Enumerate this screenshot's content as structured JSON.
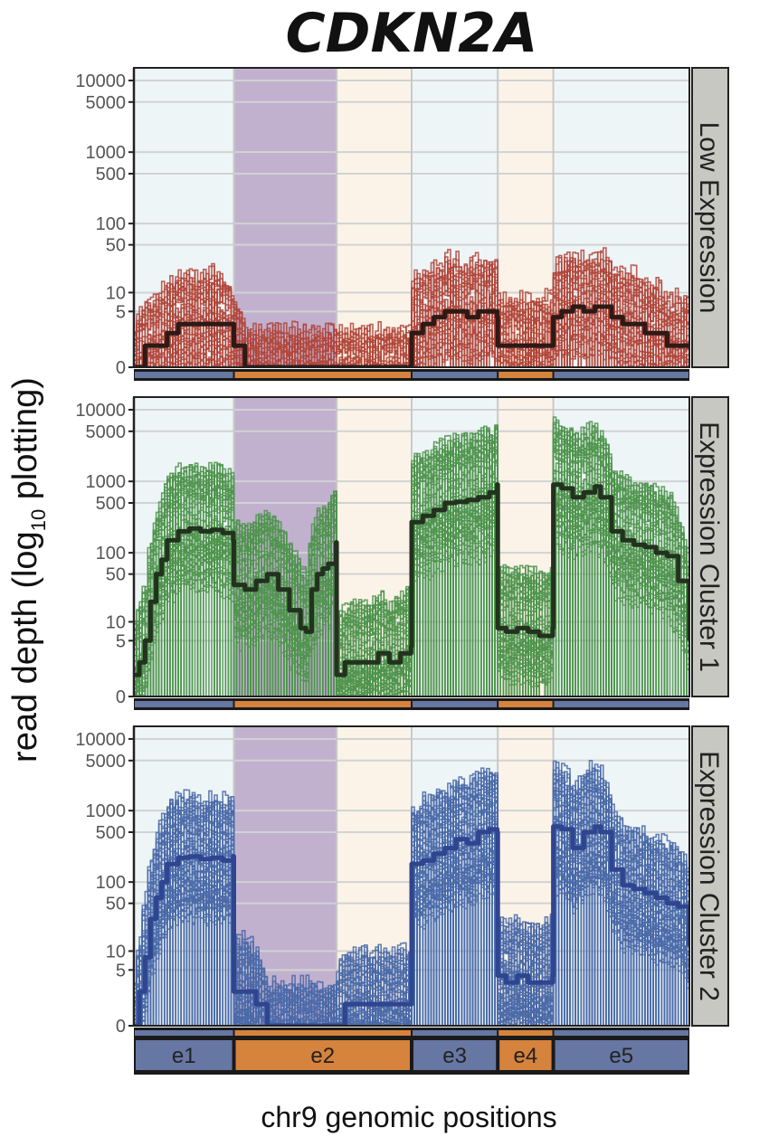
{
  "chart_data": {
    "type": "line",
    "title": "CDKN2A",
    "xlabel": "chr9 genomic positions",
    "ylabel_main": "read depth (log",
    "ylabel_sub": "10",
    "ylabel_end": " plotting)",
    "y_scale": "log10(1+x)",
    "y_ticks": [
      0,
      5,
      10,
      50,
      100,
      500,
      1000,
      5000,
      10000
    ],
    "y_tick_labels": [
      "0",
      "5",
      "10",
      "50",
      "100",
      "500",
      "1000",
      "5000",
      "10000"
    ],
    "xlim": [
      0,
      100
    ],
    "ylim": [
      0,
      15000
    ],
    "grid": true,
    "exons": [
      {
        "name": "e1",
        "start": 0,
        "end": 18,
        "color": "#6677a3"
      },
      {
        "name": "e2",
        "start": 18,
        "end": 50,
        "color": "#d6833d"
      },
      {
        "name": "e3",
        "start": 50,
        "end": 65.5,
        "color": "#6677a3"
      },
      {
        "name": "e4",
        "start": 65.5,
        "end": 75.5,
        "color": "#d6833d"
      },
      {
        "name": "e5",
        "start": 75.5,
        "end": 100,
        "color": "#6677a3"
      }
    ],
    "background_bands": [
      {
        "start": 0,
        "end": 18,
        "color": "#eef5f7"
      },
      {
        "start": 18,
        "end": 36.5,
        "color": "#c1b1cf"
      },
      {
        "start": 36.5,
        "end": 50,
        "color": "#fcf3e8"
      },
      {
        "start": 50,
        "end": 65.5,
        "color": "#eef5f7"
      },
      {
        "start": 65.5,
        "end": 75.5,
        "color": "#fcf3e8"
      },
      {
        "start": 75.5,
        "end": 100,
        "color": "#eef5f7"
      }
    ],
    "panels": [
      {
        "strip": "Low Expression",
        "color_samples": "#b1453a",
        "color_mean": "#2d1a16",
        "n_samples": 34,
        "mean": [
          [
            0,
            0
          ],
          [
            2,
            1
          ],
          [
            4,
            1
          ],
          [
            6,
            2
          ],
          [
            8,
            3
          ],
          [
            10,
            3
          ],
          [
            12,
            3
          ],
          [
            14,
            3
          ],
          [
            16,
            3
          ],
          [
            18,
            1
          ],
          [
            20,
            0
          ],
          [
            22,
            0
          ],
          [
            24,
            0
          ],
          [
            26,
            0
          ],
          [
            28,
            0
          ],
          [
            30,
            0
          ],
          [
            32,
            0
          ],
          [
            34,
            0
          ],
          [
            36,
            0
          ],
          [
            38,
            0
          ],
          [
            40,
            0
          ],
          [
            42,
            0
          ],
          [
            44,
            0
          ],
          [
            46,
            0
          ],
          [
            48,
            0
          ],
          [
            49.9,
            0
          ],
          [
            50,
            2
          ],
          [
            52,
            3
          ],
          [
            54,
            4
          ],
          [
            56,
            5
          ],
          [
            58,
            5
          ],
          [
            60,
            4
          ],
          [
            62,
            5
          ],
          [
            64,
            5
          ],
          [
            65.4,
            4
          ],
          [
            65.5,
            1
          ],
          [
            68,
            1
          ],
          [
            70,
            1
          ],
          [
            72,
            1
          ],
          [
            74,
            1
          ],
          [
            75.4,
            1
          ],
          [
            75.5,
            4
          ],
          [
            77,
            5
          ],
          [
            79,
            6
          ],
          [
            81,
            5
          ],
          [
            83,
            6
          ],
          [
            84,
            6
          ],
          [
            86,
            4
          ],
          [
            88,
            3
          ],
          [
            90,
            3
          ],
          [
            92,
            2
          ],
          [
            94,
            2
          ],
          [
            96,
            1
          ],
          [
            98,
            1
          ],
          [
            100,
            1
          ]
        ]
      },
      {
        "strip": "Expression Cluster 1",
        "color_samples": "#4f944d",
        "color_mean": "#23311f",
        "n_samples": 60,
        "mean": [
          [
            0,
            1
          ],
          [
            1,
            2
          ],
          [
            2,
            5
          ],
          [
            3,
            20
          ],
          [
            4,
            50
          ],
          [
            5,
            80
          ],
          [
            6,
            150
          ],
          [
            8,
            200
          ],
          [
            10,
            220
          ],
          [
            12,
            200
          ],
          [
            14,
            210
          ],
          [
            16,
            190
          ],
          [
            17.9,
            150
          ],
          [
            18,
            35
          ],
          [
            20,
            30
          ],
          [
            22,
            40
          ],
          [
            24,
            50
          ],
          [
            26,
            30
          ],
          [
            28,
            15
          ],
          [
            30,
            8
          ],
          [
            31,
            7
          ],
          [
            32,
            30
          ],
          [
            33,
            50
          ],
          [
            34,
            60
          ],
          [
            35,
            70
          ],
          [
            36.4,
            140
          ],
          [
            36.5,
            1
          ],
          [
            38,
            2
          ],
          [
            40,
            2
          ],
          [
            42,
            2
          ],
          [
            44,
            3
          ],
          [
            46,
            2
          ],
          [
            48,
            3
          ],
          [
            49.9,
            4
          ],
          [
            50,
            270
          ],
          [
            52,
            330
          ],
          [
            54,
            400
          ],
          [
            56,
            500
          ],
          [
            58,
            520
          ],
          [
            60,
            550
          ],
          [
            62,
            600
          ],
          [
            64,
            700
          ],
          [
            65.4,
            900
          ],
          [
            65.5,
            8
          ],
          [
            67,
            7
          ],
          [
            69,
            8
          ],
          [
            71,
            7
          ],
          [
            73,
            6
          ],
          [
            75.4,
            8
          ],
          [
            75.5,
            900
          ],
          [
            77,
            800
          ],
          [
            79,
            600
          ],
          [
            81,
            700
          ],
          [
            83,
            850
          ],
          [
            84,
            600
          ],
          [
            86,
            200
          ],
          [
            88,
            150
          ],
          [
            90,
            130
          ],
          [
            92,
            120
          ],
          [
            94,
            100
          ],
          [
            96,
            90
          ],
          [
            98,
            40
          ],
          [
            100,
            5
          ]
        ]
      },
      {
        "strip": "Expression Cluster 2",
        "color_samples": "#4a6aa8",
        "color_mean": "#2f4590",
        "n_samples": 70,
        "mean": [
          [
            0,
            0
          ],
          [
            1,
            2
          ],
          [
            2,
            8
          ],
          [
            3,
            30
          ],
          [
            4,
            60
          ],
          [
            5,
            100
          ],
          [
            6,
            180
          ],
          [
            8,
            220
          ],
          [
            10,
            230
          ],
          [
            12,
            210
          ],
          [
            14,
            220
          ],
          [
            16,
            200
          ],
          [
            17.9,
            230
          ],
          [
            18,
            2
          ],
          [
            20,
            2
          ],
          [
            22,
            1
          ],
          [
            24,
            0
          ],
          [
            26,
            0
          ],
          [
            28,
            0
          ],
          [
            30,
            0
          ],
          [
            32,
            0
          ],
          [
            34,
            0
          ],
          [
            36,
            0
          ],
          [
            38,
            1
          ],
          [
            40,
            1
          ],
          [
            42,
            1
          ],
          [
            44,
            1
          ],
          [
            46,
            1
          ],
          [
            48,
            1
          ],
          [
            49.9,
            1
          ],
          [
            50,
            180
          ],
          [
            52,
            200
          ],
          [
            54,
            250
          ],
          [
            56,
            300
          ],
          [
            58,
            400
          ],
          [
            60,
            350
          ],
          [
            62,
            500
          ],
          [
            64,
            550
          ],
          [
            65.4,
            500
          ],
          [
            65.5,
            4
          ],
          [
            67,
            3
          ],
          [
            69,
            4
          ],
          [
            71,
            3
          ],
          [
            73,
            3
          ],
          [
            75.4,
            4
          ],
          [
            75.5,
            600
          ],
          [
            77,
            550
          ],
          [
            79,
            300
          ],
          [
            81,
            500
          ],
          [
            83,
            600
          ],
          [
            84,
            500
          ],
          [
            86,
            150
          ],
          [
            88,
            90
          ],
          [
            90,
            80
          ],
          [
            92,
            70
          ],
          [
            94,
            60
          ],
          [
            96,
            50
          ],
          [
            98,
            45
          ],
          [
            100,
            12
          ]
        ]
      }
    ]
  }
}
